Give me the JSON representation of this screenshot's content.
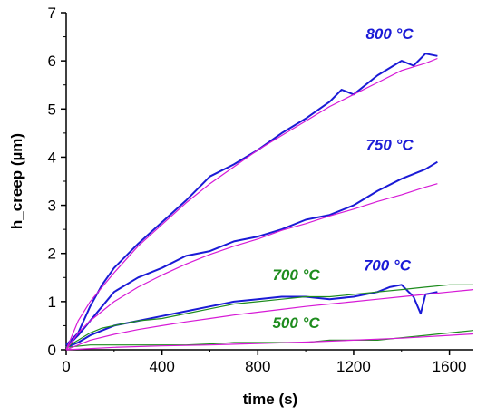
{
  "chart_data": {
    "type": "line",
    "title": "",
    "xlabel": "time (s)",
    "ylabel": "h_creep (µm)",
    "xlim": [
      0,
      1700
    ],
    "ylim": [
      0,
      7
    ],
    "xticks": [
      0,
      400,
      800,
      1200,
      1600
    ],
    "yticks": [
      0,
      1,
      2,
      3,
      4,
      5,
      6,
      7
    ],
    "grid": false,
    "legend": "none",
    "colors": {
      "measured_hot": "#1a1ad6",
      "measured_cool": "#1e8c1e",
      "fit": "#d61ad6"
    },
    "series": [
      {
        "name": "800 °C",
        "kind": "measured",
        "color": "#1a1ad6",
        "x": [
          0,
          50,
          100,
          150,
          200,
          300,
          400,
          500,
          600,
          700,
          800,
          900,
          1000,
          1100,
          1150,
          1200,
          1300,
          1400,
          1450,
          1500,
          1550
        ],
        "y": [
          0.1,
          0.35,
          0.9,
          1.35,
          1.7,
          2.2,
          2.65,
          3.1,
          3.6,
          3.85,
          4.15,
          4.5,
          4.8,
          5.15,
          5.4,
          5.3,
          5.7,
          6.0,
          5.9,
          6.15,
          6.1
        ]
      },
      {
        "name": "800 °C fit",
        "kind": "fit",
        "color": "#d61ad6",
        "x": [
          0,
          50,
          100,
          200,
          300,
          400,
          500,
          600,
          700,
          800,
          900,
          1000,
          1100,
          1200,
          1300,
          1400,
          1500,
          1550
        ],
        "y": [
          0,
          0.6,
          1.0,
          1.6,
          2.15,
          2.6,
          3.05,
          3.45,
          3.8,
          4.15,
          4.45,
          4.75,
          5.05,
          5.3,
          5.55,
          5.8,
          5.95,
          6.05
        ]
      },
      {
        "name": "750 °C",
        "kind": "measured",
        "color": "#1a1ad6",
        "x": [
          0,
          50,
          100,
          150,
          200,
          300,
          400,
          500,
          600,
          700,
          800,
          900,
          1000,
          1100,
          1200,
          1300,
          1400,
          1500,
          1550
        ],
        "y": [
          0.05,
          0.3,
          0.6,
          0.9,
          1.2,
          1.5,
          1.7,
          1.95,
          2.05,
          2.25,
          2.35,
          2.5,
          2.7,
          2.8,
          3.0,
          3.3,
          3.55,
          3.75,
          3.9
        ]
      },
      {
        "name": "750 °C fit",
        "kind": "fit",
        "color": "#d61ad6",
        "x": [
          0,
          50,
          100,
          200,
          300,
          400,
          500,
          600,
          700,
          800,
          900,
          1000,
          1100,
          1200,
          1300,
          1400,
          1500,
          1550
        ],
        "y": [
          0,
          0.35,
          0.6,
          1.0,
          1.3,
          1.55,
          1.78,
          1.98,
          2.15,
          2.3,
          2.48,
          2.62,
          2.78,
          2.92,
          3.08,
          3.22,
          3.38,
          3.45
        ]
      },
      {
        "name": "700 °C",
        "kind": "measured",
        "color": "#1a1ad6",
        "x": [
          0,
          50,
          100,
          150,
          200,
          300,
          400,
          500,
          600,
          700,
          800,
          900,
          1000,
          1100,
          1200,
          1300,
          1350,
          1400,
          1450,
          1480,
          1500,
          1550
        ],
        "y": [
          0.05,
          0.15,
          0.3,
          0.4,
          0.5,
          0.6,
          0.7,
          0.8,
          0.9,
          1.0,
          1.05,
          1.1,
          1.1,
          1.05,
          1.1,
          1.2,
          1.3,
          1.35,
          1.1,
          0.75,
          1.15,
          1.2
        ]
      },
      {
        "name": "700 °C",
        "kind": "measured",
        "color": "#1e8c1e",
        "x": [
          0,
          50,
          100,
          150,
          200,
          300,
          400,
          500,
          600,
          700,
          800,
          900,
          1000,
          1100,
          1200,
          1300,
          1400,
          1500,
          1600,
          1700
        ],
        "y": [
          0.05,
          0.2,
          0.35,
          0.45,
          0.5,
          0.6,
          0.65,
          0.75,
          0.85,
          0.95,
          1.0,
          1.05,
          1.1,
          1.1,
          1.15,
          1.2,
          1.25,
          1.3,
          1.35,
          1.35
        ]
      },
      {
        "name": "700 °C fit",
        "kind": "fit",
        "color": "#d61ad6",
        "x": [
          0,
          100,
          200,
          300,
          400,
          500,
          600,
          700,
          800,
          900,
          1000,
          1100,
          1200,
          1300,
          1400,
          1500,
          1600,
          1700
        ],
        "y": [
          0,
          0.2,
          0.32,
          0.42,
          0.5,
          0.58,
          0.65,
          0.72,
          0.78,
          0.84,
          0.9,
          0.95,
          1.0,
          1.05,
          1.1,
          1.15,
          1.2,
          1.25
        ]
      },
      {
        "name": "500 °C",
        "kind": "measured",
        "color": "#1e8c1e",
        "x": [
          0,
          100,
          200,
          300,
          400,
          500,
          600,
          700,
          800,
          900,
          1000,
          1100,
          1200,
          1300,
          1400,
          1500,
          1600,
          1700
        ],
        "y": [
          0.05,
          0.1,
          0.1,
          0.1,
          0.1,
          0.1,
          0.12,
          0.15,
          0.15,
          0.15,
          0.15,
          0.2,
          0.2,
          0.2,
          0.25,
          0.3,
          0.35,
          0.4
        ]
      },
      {
        "name": "500 °C fit",
        "kind": "fit",
        "color": "#d61ad6",
        "x": [
          0,
          200,
          400,
          600,
          800,
          1000,
          1200,
          1400,
          1600,
          1700
        ],
        "y": [
          0,
          0.05,
          0.08,
          0.1,
          0.13,
          0.16,
          0.2,
          0.24,
          0.3,
          0.33
        ]
      }
    ],
    "annotations": [
      {
        "text": "800 °C",
        "x": 1350,
        "y": 6.45,
        "color": "#1a1ad6"
      },
      {
        "text": "750 °C",
        "x": 1350,
        "y": 4.15,
        "color": "#1a1ad6"
      },
      {
        "text": "700 °C",
        "x": 1340,
        "y": 1.65,
        "color": "#1a1ad6"
      },
      {
        "text": "700 °C",
        "x": 960,
        "y": 1.45,
        "color": "#1e8c1e"
      },
      {
        "text": "500 °C",
        "x": 960,
        "y": 0.45,
        "color": "#1e8c1e"
      }
    ]
  }
}
